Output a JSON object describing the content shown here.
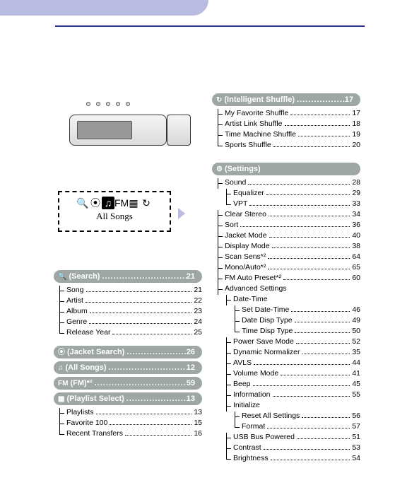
{
  "colors": {
    "stripe": "#b9bce0",
    "rule": "#2a2e8f",
    "bar": "#9ea7a3",
    "bar_text": "#ffffff"
  },
  "device_screen": {
    "icons": [
      "🔍",
      "⦿",
      "♫",
      "FM",
      "▦",
      "↻"
    ],
    "highlighted_index": 2,
    "label": "All Songs"
  },
  "left_sections": [
    {
      "icon": "🔍",
      "title": "(Search)",
      "page": "21",
      "items": [
        {
          "label": "Song",
          "page": "21"
        },
        {
          "label": "Artist",
          "page": "22"
        },
        {
          "label": "Album",
          "page": "23"
        },
        {
          "label": "Genre",
          "page": "24"
        },
        {
          "label": "Release Year",
          "page": "25"
        }
      ]
    },
    {
      "icon": "⦿",
      "title": "(Jacket Search)",
      "page": "26",
      "items": []
    },
    {
      "icon": "♫",
      "title": "(All Songs)",
      "page": "12",
      "items": []
    },
    {
      "icon": "FM",
      "title": "(FM)*²",
      "page": "59",
      "items": []
    },
    {
      "icon": "▦",
      "title": "(Playlist Select)",
      "page": "13",
      "items": [
        {
          "label": "Playlists",
          "page": "13"
        },
        {
          "label": "Favorite 100",
          "page": "15"
        },
        {
          "label": "Recent Transfers",
          "page": "16"
        }
      ]
    }
  ],
  "shuffle_section": {
    "icon": "↻",
    "title": "(Intelligent Shuffle)",
    "page": "17",
    "items": [
      {
        "label": "My Favorite Shuffle",
        "page": "17"
      },
      {
        "label": "Artist Link Shuffle",
        "page": "18"
      },
      {
        "label": "Time Machine Shuffle",
        "page": "19"
      },
      {
        "label": "Sports Shuffle",
        "page": "20"
      }
    ]
  },
  "settings_section": {
    "icon": "⚙",
    "title": "(Settings)",
    "page": "",
    "items": [
      {
        "label": "Sound",
        "page": "28",
        "children": [
          {
            "label": "Equalizer",
            "page": "29"
          },
          {
            "label": "VPT",
            "page": "33"
          }
        ]
      },
      {
        "label": "Clear Stereo",
        "page": "34"
      },
      {
        "label": "Sort",
        "page": "36"
      },
      {
        "label": "Jacket Mode",
        "page": "40"
      },
      {
        "label": "Display Mode",
        "page": "38"
      },
      {
        "label": "Scan Sens*²",
        "page": "64"
      },
      {
        "label": "Mono/Auto*²",
        "page": "65"
      },
      {
        "label": "FM Auto Preset*²",
        "page": "60"
      },
      {
        "label": "Advanced Settings",
        "page": "",
        "children": [
          {
            "label": "Date-Time",
            "page": "",
            "children": [
              {
                "label": "Set Date-Time",
                "page": "46"
              },
              {
                "label": "Date Disp Type",
                "page": "49"
              },
              {
                "label": "Time Disp Type",
                "page": "50"
              }
            ]
          },
          {
            "label": "Power Save Mode",
            "page": "52"
          },
          {
            "label": "Dynamic Normalizer",
            "page": "35"
          },
          {
            "label": "AVLS",
            "page": "44"
          },
          {
            "label": "Volume Mode",
            "page": "41"
          },
          {
            "label": "Beep",
            "page": "45"
          },
          {
            "label": "Information",
            "page": "55"
          },
          {
            "label": "Initialize",
            "page": "",
            "children": [
              {
                "label": "Reset All Settings",
                "page": "56"
              },
              {
                "label": "Format",
                "page": "57"
              }
            ]
          },
          {
            "label": "USB Bus Powered",
            "page": "51"
          },
          {
            "label": "Contrast",
            "page": "53"
          },
          {
            "label": "Brightness",
            "page": "54"
          }
        ]
      }
    ]
  }
}
